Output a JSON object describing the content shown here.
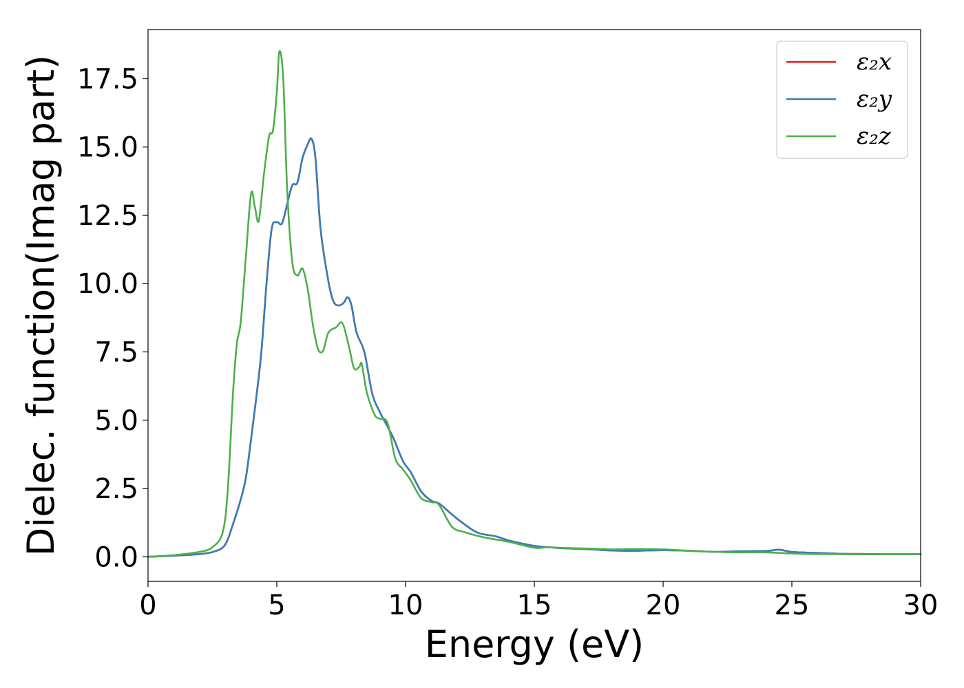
{
  "chart_data": {
    "type": "line",
    "title": "",
    "xlabel": "Energy (eV)",
    "ylabel": "Dielec. function(Imag part)",
    "xlim": [
      0,
      30
    ],
    "ylim": [
      -0.9,
      19.3
    ],
    "xticks": [
      0,
      5,
      10,
      15,
      20,
      25,
      30
    ],
    "xtick_labels": [
      "0",
      "5",
      "10",
      "15",
      "20",
      "25",
      "30"
    ],
    "yticks": [
      0.0,
      2.5,
      5.0,
      7.5,
      10.0,
      12.5,
      15.0,
      17.5
    ],
    "ytick_labels": [
      "0.0",
      "2.5",
      "5.0",
      "7.5",
      "10.0",
      "12.5",
      "15.0",
      "17.5"
    ],
    "grid": false,
    "legend_position": "top-right",
    "series": [
      {
        "name": "ε₂x",
        "color": "#e41a1c",
        "points": [
          [
            0.0,
            0.0
          ],
          [
            1.0,
            0.04
          ],
          [
            2.0,
            0.1
          ],
          [
            2.6,
            0.2
          ],
          [
            3.0,
            0.45
          ],
          [
            3.3,
            1.2
          ],
          [
            3.6,
            2.1
          ],
          [
            3.8,
            2.9
          ],
          [
            4.0,
            4.3
          ],
          [
            4.2,
            5.8
          ],
          [
            4.4,
            7.5
          ],
          [
            4.6,
            10.0
          ],
          [
            4.8,
            12.0
          ],
          [
            5.0,
            12.25
          ],
          [
            5.2,
            12.2
          ],
          [
            5.4,
            12.9
          ],
          [
            5.6,
            13.6
          ],
          [
            5.8,
            13.7
          ],
          [
            6.0,
            14.6
          ],
          [
            6.2,
            15.1
          ],
          [
            6.35,
            15.3
          ],
          [
            6.5,
            14.6
          ],
          [
            6.7,
            12.0
          ],
          [
            7.0,
            10.1
          ],
          [
            7.2,
            9.35
          ],
          [
            7.4,
            9.2
          ],
          [
            7.6,
            9.3
          ],
          [
            7.75,
            9.5
          ],
          [
            7.9,
            9.2
          ],
          [
            8.1,
            8.2
          ],
          [
            8.4,
            7.5
          ],
          [
            8.7,
            6.0
          ],
          [
            9.0,
            5.3
          ],
          [
            9.5,
            4.4
          ],
          [
            9.9,
            3.5
          ],
          [
            10.2,
            3.1
          ],
          [
            10.6,
            2.4
          ],
          [
            11.0,
            2.05
          ],
          [
            11.3,
            1.95
          ],
          [
            11.8,
            1.55
          ],
          [
            12.2,
            1.25
          ],
          [
            12.8,
            0.88
          ],
          [
            13.5,
            0.75
          ],
          [
            14.0,
            0.6
          ],
          [
            15.0,
            0.4
          ],
          [
            16.0,
            0.32
          ],
          [
            17.0,
            0.28
          ],
          [
            18.0,
            0.23
          ],
          [
            19.0,
            0.22
          ],
          [
            20.0,
            0.24
          ],
          [
            21.0,
            0.22
          ],
          [
            22.0,
            0.18
          ],
          [
            23.0,
            0.2
          ],
          [
            24.0,
            0.21
          ],
          [
            24.5,
            0.26
          ],
          [
            25.0,
            0.18
          ],
          [
            26.0,
            0.14
          ],
          [
            27.0,
            0.11
          ],
          [
            28.0,
            0.1
          ],
          [
            29.0,
            0.09
          ],
          [
            30.0,
            0.09
          ]
        ]
      },
      {
        "name": "ε₂y",
        "color": "#377eb8",
        "points": [
          [
            0.0,
            0.0
          ],
          [
            1.0,
            0.04
          ],
          [
            2.0,
            0.1
          ],
          [
            2.6,
            0.2
          ],
          [
            3.0,
            0.45
          ],
          [
            3.3,
            1.2
          ],
          [
            3.6,
            2.1
          ],
          [
            3.8,
            2.9
          ],
          [
            4.0,
            4.3
          ],
          [
            4.2,
            5.8
          ],
          [
            4.4,
            7.5
          ],
          [
            4.6,
            10.0
          ],
          [
            4.8,
            12.0
          ],
          [
            5.0,
            12.25
          ],
          [
            5.2,
            12.2
          ],
          [
            5.4,
            12.9
          ],
          [
            5.6,
            13.6
          ],
          [
            5.8,
            13.7
          ],
          [
            6.0,
            14.6
          ],
          [
            6.2,
            15.1
          ],
          [
            6.35,
            15.3
          ],
          [
            6.5,
            14.6
          ],
          [
            6.7,
            12.0
          ],
          [
            7.0,
            10.1
          ],
          [
            7.2,
            9.35
          ],
          [
            7.4,
            9.2
          ],
          [
            7.6,
            9.3
          ],
          [
            7.75,
            9.5
          ],
          [
            7.9,
            9.2
          ],
          [
            8.1,
            8.2
          ],
          [
            8.4,
            7.5
          ],
          [
            8.7,
            6.0
          ],
          [
            9.0,
            5.3
          ],
          [
            9.5,
            4.4
          ],
          [
            9.9,
            3.5
          ],
          [
            10.2,
            3.1
          ],
          [
            10.6,
            2.4
          ],
          [
            11.0,
            2.05
          ],
          [
            11.3,
            1.95
          ],
          [
            11.8,
            1.55
          ],
          [
            12.2,
            1.25
          ],
          [
            12.8,
            0.88
          ],
          [
            13.5,
            0.75
          ],
          [
            14.0,
            0.6
          ],
          [
            15.0,
            0.4
          ],
          [
            16.0,
            0.32
          ],
          [
            17.0,
            0.28
          ],
          [
            18.0,
            0.23
          ],
          [
            19.0,
            0.22
          ],
          [
            20.0,
            0.24
          ],
          [
            21.0,
            0.22
          ],
          [
            22.0,
            0.18
          ],
          [
            23.0,
            0.2
          ],
          [
            24.0,
            0.21
          ],
          [
            24.5,
            0.26
          ],
          [
            25.0,
            0.18
          ],
          [
            26.0,
            0.14
          ],
          [
            27.0,
            0.11
          ],
          [
            28.0,
            0.1
          ],
          [
            29.0,
            0.09
          ],
          [
            30.0,
            0.09
          ]
        ]
      },
      {
        "name": "ε₂z",
        "color": "#4daf4a",
        "points": [
          [
            0.0,
            0.0
          ],
          [
            1.0,
            0.06
          ],
          [
            2.0,
            0.18
          ],
          [
            2.5,
            0.35
          ],
          [
            2.9,
            0.9
          ],
          [
            3.1,
            2.5
          ],
          [
            3.3,
            6.0
          ],
          [
            3.45,
            7.8
          ],
          [
            3.6,
            8.6
          ],
          [
            3.8,
            11.0
          ],
          [
            4.0,
            13.3
          ],
          [
            4.15,
            12.8
          ],
          [
            4.3,
            12.3
          ],
          [
            4.5,
            14.0
          ],
          [
            4.7,
            15.4
          ],
          [
            4.85,
            15.6
          ],
          [
            5.0,
            17.0
          ],
          [
            5.1,
            18.5
          ],
          [
            5.25,
            17.5
          ],
          [
            5.4,
            13.5
          ],
          [
            5.6,
            10.8
          ],
          [
            5.8,
            10.3
          ],
          [
            6.0,
            10.55
          ],
          [
            6.2,
            9.8
          ],
          [
            6.4,
            8.5
          ],
          [
            6.6,
            7.6
          ],
          [
            6.8,
            7.55
          ],
          [
            7.0,
            8.2
          ],
          [
            7.3,
            8.4
          ],
          [
            7.55,
            8.55
          ],
          [
            7.8,
            7.7
          ],
          [
            8.0,
            6.9
          ],
          [
            8.2,
            6.95
          ],
          [
            8.3,
            7.05
          ],
          [
            8.5,
            6.0
          ],
          [
            8.8,
            5.2
          ],
          [
            9.0,
            5.05
          ],
          [
            9.3,
            4.9
          ],
          [
            9.6,
            3.6
          ],
          [
            9.9,
            3.2
          ],
          [
            10.2,
            2.8
          ],
          [
            10.6,
            2.15
          ],
          [
            11.0,
            2.0
          ],
          [
            11.3,
            1.9
          ],
          [
            11.8,
            1.1
          ],
          [
            12.3,
            0.9
          ],
          [
            13.0,
            0.72
          ],
          [
            14.0,
            0.55
          ],
          [
            15.0,
            0.33
          ],
          [
            15.5,
            0.35
          ],
          [
            16.0,
            0.33
          ],
          [
            17.0,
            0.3
          ],
          [
            18.0,
            0.27
          ],
          [
            19.0,
            0.28
          ],
          [
            20.0,
            0.27
          ],
          [
            21.0,
            0.22
          ],
          [
            22.0,
            0.18
          ],
          [
            23.0,
            0.16
          ],
          [
            24.0,
            0.16
          ],
          [
            25.0,
            0.12
          ],
          [
            26.0,
            0.1
          ],
          [
            28.0,
            0.09
          ],
          [
            30.0,
            0.1
          ]
        ]
      }
    ]
  }
}
